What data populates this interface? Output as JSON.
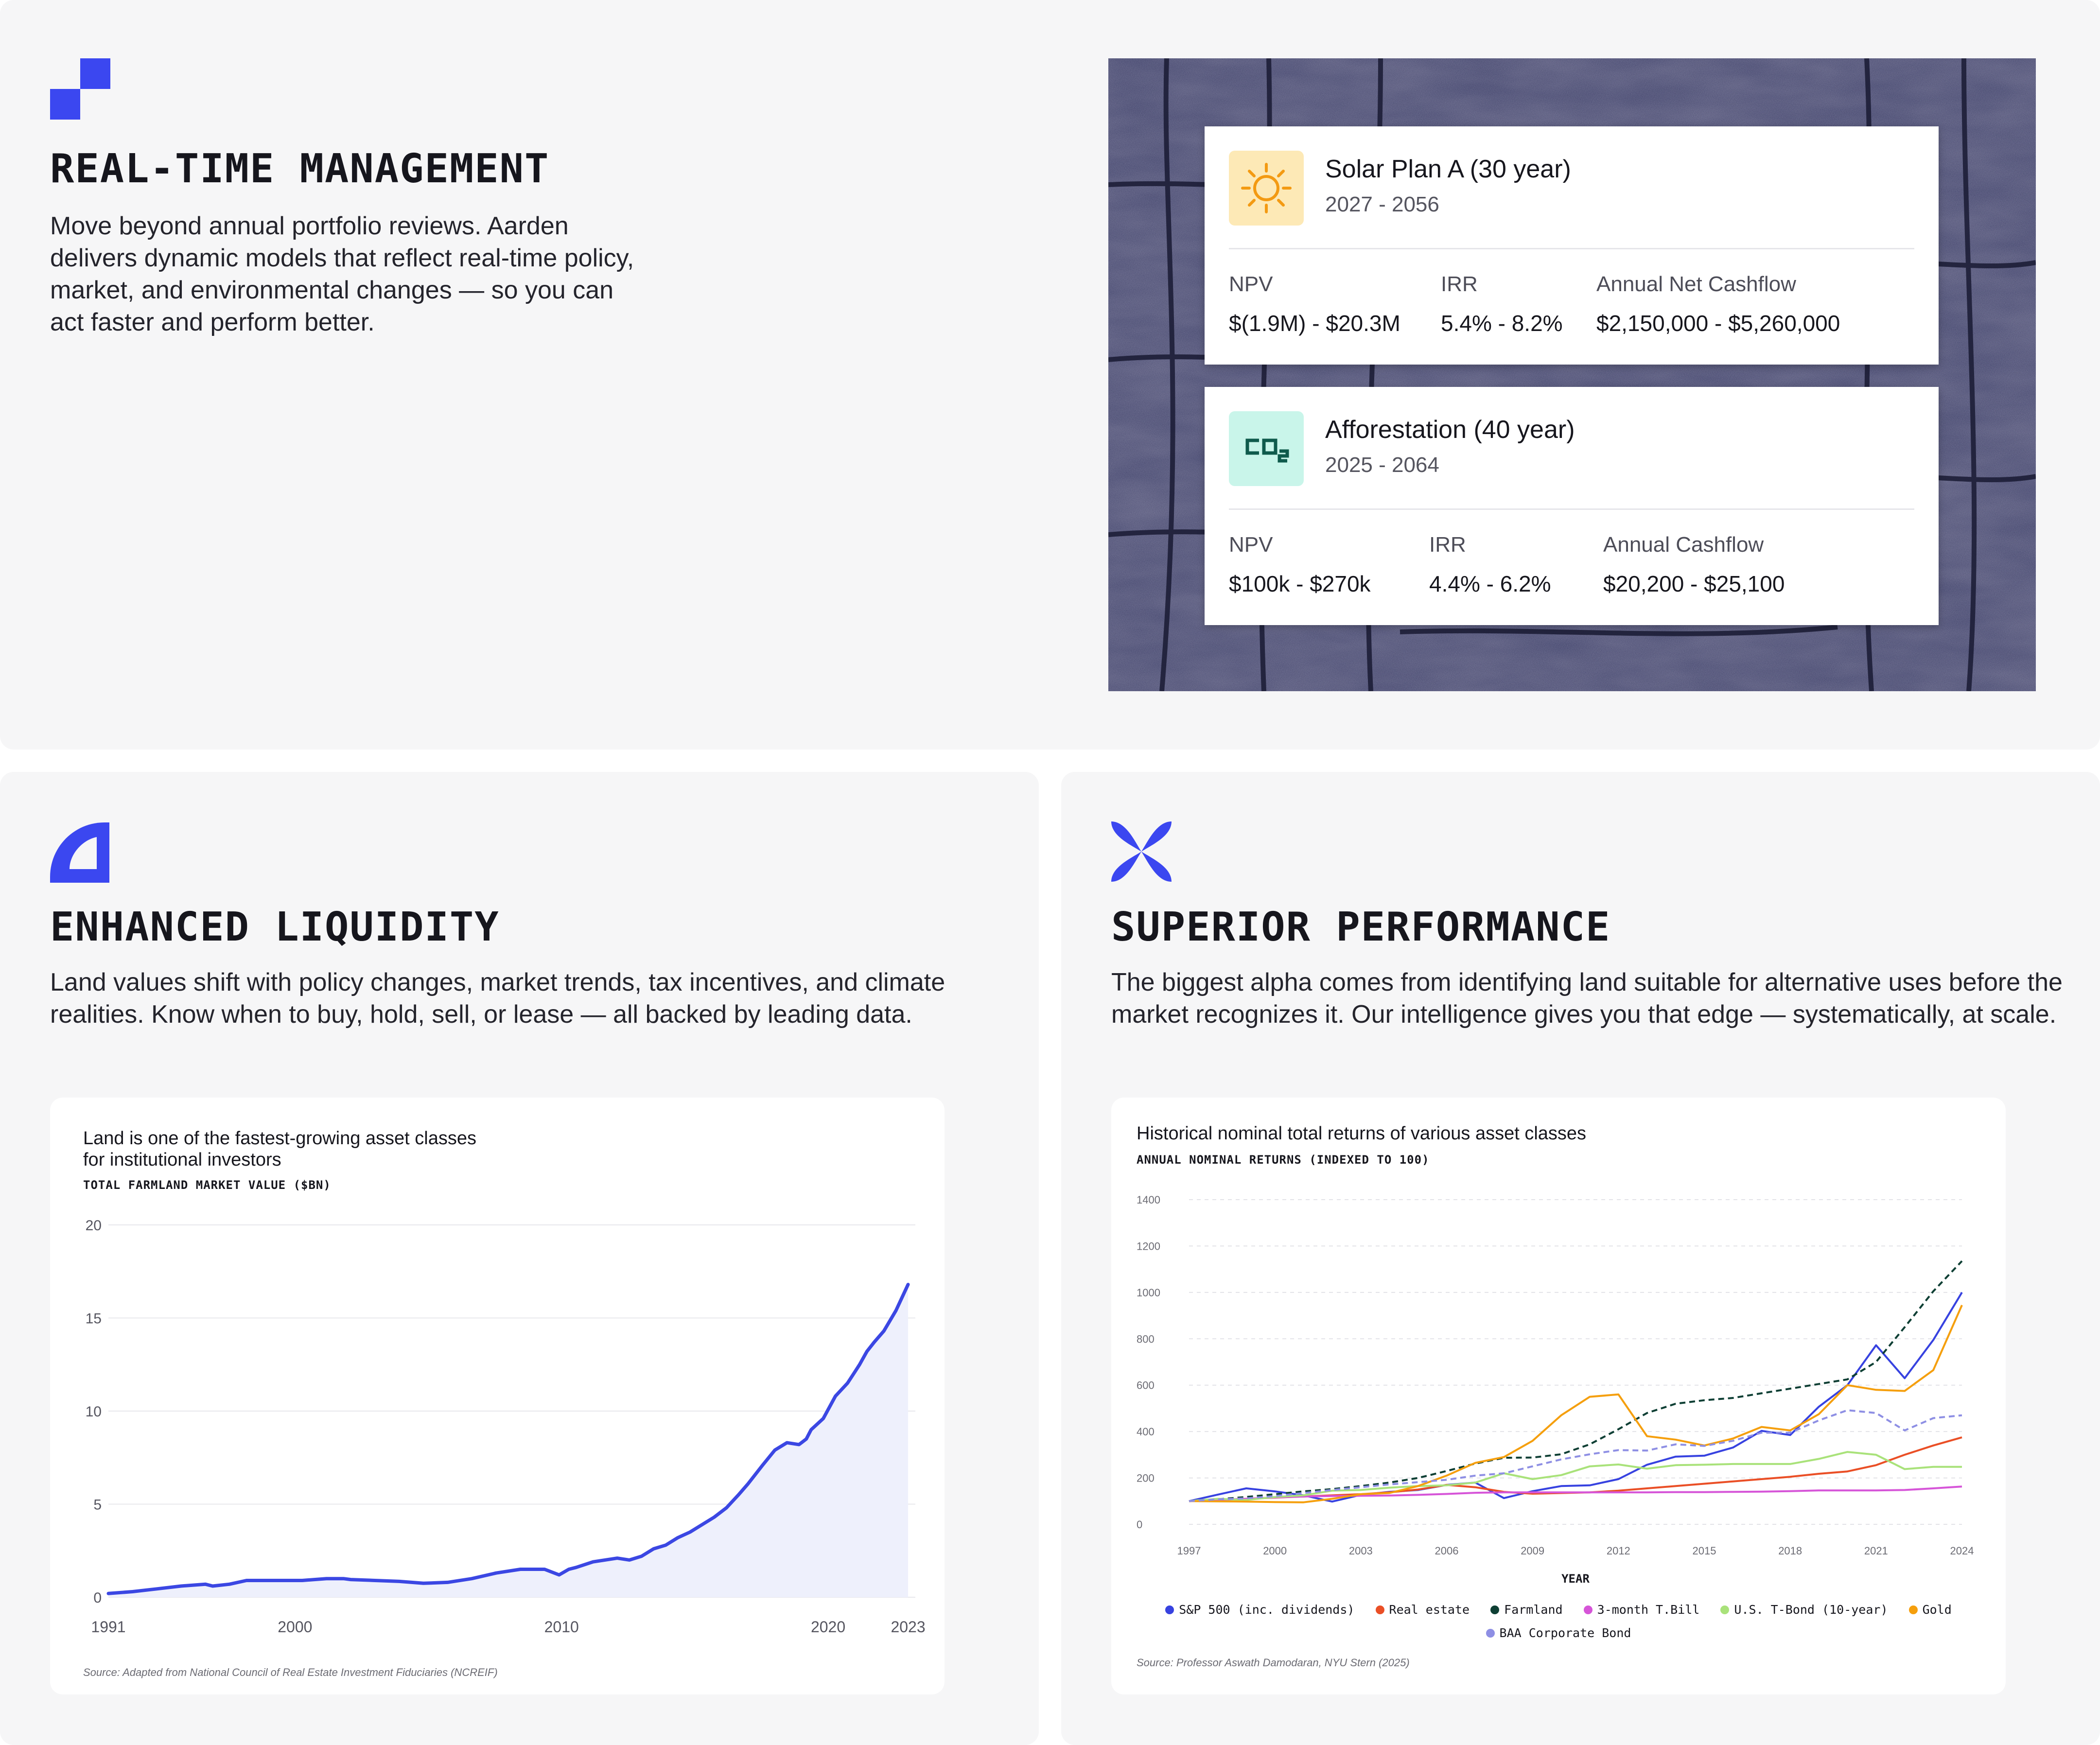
{
  "features": {
    "realtime": {
      "title": "REAL-TIME MANAGEMENT",
      "description": "Move beyond annual portfolio reviews. Aarden delivers dynamic models that reflect real-time policy, market, and environmental changes — so you can act faster and perform better."
    },
    "liquidity": {
      "title": "ENHANCED LIQUIDITY",
      "description": "Land values shift with policy changes, market trends, tax incentives, and climate realities. Know when to buy, hold, sell, or lease — all backed by leading data."
    },
    "performance": {
      "title": "SUPERIOR PERFORMANCE",
      "description": "The biggest alpha comes from identifying land suitable for alternative uses before the market recognizes it. Our intelligence gives you that edge — systematically, at scale."
    }
  },
  "plans": [
    {
      "name": "Solar Plan A (30 year)",
      "years": "2027 - 2056",
      "icon": "sun-icon",
      "icon_bg": "#fde9b6",
      "metrics": [
        {
          "label": "NPV",
          "value": "$(1.9M) - $20.3M"
        },
        {
          "label": "IRR",
          "value": "5.4% - 8.2%"
        },
        {
          "label": "Annual Net Cashflow",
          "value": "$2,150,000 - $5,260,000"
        }
      ]
    },
    {
      "name": "Afforestation (40 year)",
      "years": "2025 - 2064",
      "icon": "co2-icon",
      "icon_label": "CO2",
      "icon_bg": "#c9f5ea",
      "metrics": [
        {
          "label": "NPV",
          "value": "$100k - $270k"
        },
        {
          "label": "IRR",
          "value": "4.4% - 6.2%"
        },
        {
          "label": "Annual Cashflow",
          "value": "$20,200 - $25,100"
        }
      ]
    }
  ],
  "chart_data": [
    {
      "type": "area",
      "title_line1": "Land is one of the fastest-growing asset classes",
      "title_line2": "for institutional investors",
      "subtitle": "TOTAL FARMLAND MARKET VALUE ($BN)",
      "source": "Source: Adapted from National Council of Real Estate Investment Fiduciaries (NCREIF)",
      "x_tick_labels": [
        "1991",
        "2000",
        "2010",
        "2020",
        "2023"
      ],
      "x_tick_values": [
        1991,
        1998.7,
        2009.7,
        2020.7,
        2024
      ],
      "xlim": [
        1991,
        2024.3
      ],
      "ylim": [
        0,
        20
      ],
      "y_ticks": [
        0,
        5,
        10,
        15,
        20
      ],
      "grid": true,
      "color": "#3b47e3",
      "x": [
        1991,
        1992,
        1993,
        1994,
        1995,
        1995.3,
        1996,
        1996.7,
        1997,
        1998,
        1999,
        2000,
        2000.7,
        2001,
        2002,
        2003,
        2004,
        2005,
        2006,
        2007,
        2008,
        2009,
        2009.6,
        2010,
        2010.3,
        2011,
        2012,
        2012.5,
        2013,
        2013.5,
        2014,
        2014.5,
        2015,
        2016,
        2016.5,
        2017,
        2017.4,
        2018,
        2018.5,
        2019,
        2019.5,
        2019.8,
        2020,
        2020.5,
        2021,
        2021.5,
        2021.8,
        2022,
        2022.3,
        2022.6,
        2023,
        2023.5,
        2024
      ],
      "values": [
        0.2,
        0.3,
        0.45,
        0.6,
        0.7,
        0.6,
        0.7,
        0.9,
        0.9,
        0.9,
        0.9,
        1.0,
        1.0,
        0.95,
        0.9,
        0.85,
        0.75,
        0.8,
        1.0,
        1.3,
        1.5,
        1.5,
        1.2,
        1.5,
        1.6,
        1.9,
        2.1,
        2.0,
        2.2,
        2.6,
        2.8,
        3.2,
        3.5,
        4.3,
        4.8,
        5.5,
        6.1,
        7.1,
        7.9,
        8.3,
        8.2,
        8.5,
        9.0,
        9.6,
        10.8,
        11.5,
        12.1,
        12.5,
        13.2,
        13.7,
        14.3,
        15.4,
        16.8
      ]
    },
    {
      "type": "line",
      "title": "Historical nominal total returns of various asset classes",
      "subtitle": "ANNUAL NOMINAL RETURNS (INDEXED TO 100)",
      "xlabel": "YEAR",
      "source": "Source: Professor Aswath Damodaran, NYU Stern (2025)",
      "categories": [
        1997,
        1998,
        1999,
        2000,
        2001,
        2002,
        2003,
        2004,
        2005,
        2006,
        2007,
        2008,
        2009,
        2010,
        2011,
        2012,
        2013,
        2014,
        2015,
        2016,
        2017,
        2018,
        2019,
        2020,
        2021,
        2022,
        2023,
        2024
      ],
      "x_ticks": [
        "1997",
        "2000",
        "2003",
        "2006",
        "2009",
        "2012",
        "2015",
        "2018",
        "2021",
        "2024"
      ],
      "ylim": [
        0,
        1400
      ],
      "y_ticks": [
        "0",
        "200",
        "400",
        "600",
        "800",
        "1000",
        "1200",
        "1400"
      ],
      "y_tick_values": [
        0,
        200,
        400,
        600,
        800,
        1000,
        1200,
        1400
      ],
      "grid": true,
      "legend_position": "bottom-center",
      "series": [
        {
          "name": "S&P 500 (inc. dividends)",
          "color": "#3742e0",
          "dash": false,
          "values": [
            100,
            128,
            155,
            142,
            125,
            98,
            127,
            140,
            148,
            170,
            180,
            113,
            143,
            165,
            168,
            195,
            257,
            292,
            296,
            331,
            403,
            385,
            507,
            600,
            772,
            630,
            795,
            1000
          ]
        },
        {
          "name": "Real estate",
          "color": "#ea4f26",
          "dash": false,
          "values": [
            100,
            105,
            110,
            115,
            120,
            125,
            130,
            138,
            150,
            170,
            160,
            140,
            132,
            135,
            138,
            145,
            155,
            165,
            175,
            185,
            195,
            205,
            218,
            228,
            255,
            300,
            340,
            375
          ]
        },
        {
          "name": "Farmland",
          "color": "#0e3f34",
          "dash": true,
          "values": [
            100,
            108,
            118,
            130,
            142,
            152,
            165,
            180,
            200,
            230,
            262,
            287,
            288,
            302,
            345,
            410,
            480,
            520,
            535,
            545,
            565,
            585,
            605,
            625,
            700,
            850,
            1005,
            1135
          ]
        },
        {
          "name": "3-month T.Bill",
          "color": "#d655d8",
          "dash": false,
          "values": [
            100,
            105,
            110,
            116,
            120,
            122,
            123,
            124,
            127,
            131,
            136,
            138,
            138,
            138,
            138,
            138,
            138,
            139,
            139,
            140,
            141,
            143,
            146,
            146,
            146,
            148,
            155,
            163
          ]
        },
        {
          "name": "U.S. T-Bond (10-year)",
          "color": "#a9e27a",
          "dash": false,
          "values": [
            100,
            110,
            105,
            118,
            125,
            145,
            148,
            158,
            165,
            168,
            180,
            220,
            195,
            212,
            250,
            258,
            240,
            255,
            257,
            260,
            260,
            260,
            282,
            312,
            300,
            238,
            248,
            248
          ]
        },
        {
          "name": "Gold",
          "color": "#f59f0d",
          "dash": false,
          "values": [
            100,
            99,
            98,
            96,
            95,
            110,
            130,
            135,
            165,
            210,
            265,
            290,
            360,
            470,
            550,
            560,
            380,
            365,
            340,
            370,
            420,
            405,
            475,
            600,
            580,
            575,
            665,
            945
          ]
        },
        {
          "name": "BAA Corporate Bond",
          "color": "#8e8fe4",
          "dash": true,
          "values": [
            100,
            108,
            112,
            122,
            135,
            148,
            160,
            172,
            182,
            192,
            210,
            220,
            250,
            280,
            302,
            320,
            318,
            345,
            338,
            360,
            395,
            395,
            448,
            492,
            480,
            405,
            458,
            470
          ]
        }
      ]
    }
  ]
}
